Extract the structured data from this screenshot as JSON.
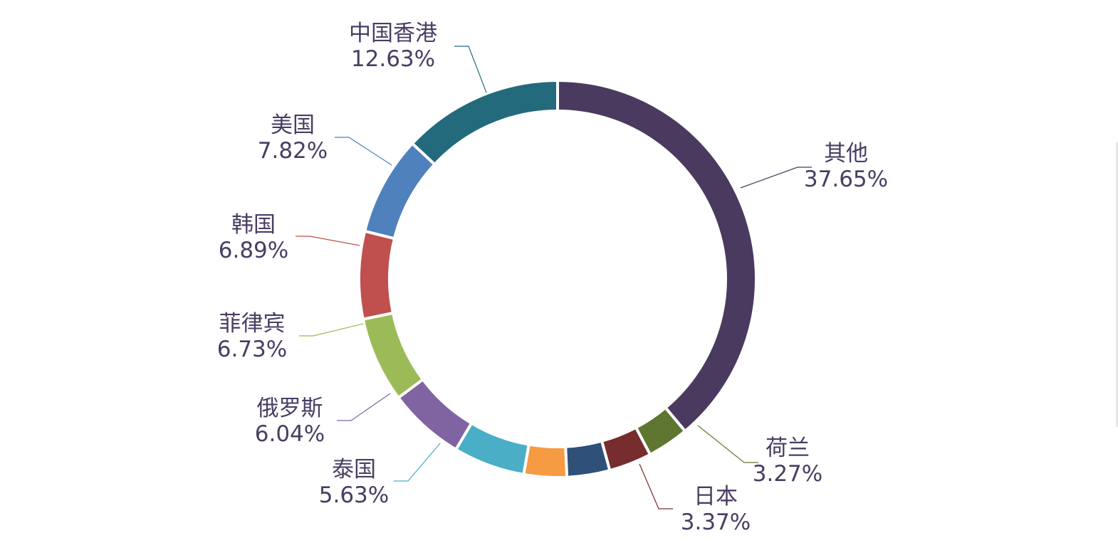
{
  "chart_data": {
    "type": "pie",
    "donut": true,
    "slices": [
      {
        "name": "其他",
        "value": 37.65,
        "label": "37.65%",
        "color": "#4b3a5f",
        "labeled": true
      },
      {
        "name": "荷兰",
        "value": 3.27,
        "label": "3.27%",
        "color": "#5f7632",
        "labeled": true
      },
      {
        "name": "日本",
        "value": 3.37,
        "label": "3.37%",
        "color": "#772c2d",
        "labeled": true
      },
      {
        "name": "",
        "value": 3.37,
        "label": "",
        "color": "#2e5079",
        "labeled": false
      },
      {
        "name": "",
        "value": 3.37,
        "label": "",
        "color": "#f69a43",
        "labeled": false
      },
      {
        "name": "泰国",
        "value": 5.63,
        "label": "5.63%",
        "color": "#49aec6",
        "labeled": true
      },
      {
        "name": "俄罗斯",
        "value": 6.04,
        "label": "6.04%",
        "color": "#8064a2",
        "labeled": true
      },
      {
        "name": "菲律宾",
        "value": 6.73,
        "label": "6.73%",
        "color": "#9bbb59",
        "labeled": true
      },
      {
        "name": "韩国",
        "value": 6.89,
        "label": "6.89%",
        "color": "#c0504d",
        "labeled": true
      },
      {
        "name": "美国",
        "value": 7.82,
        "label": "7.82%",
        "color": "#4f81bd",
        "labeled": true
      },
      {
        "name": "中国香港",
        "value": 12.63,
        "label": "12.63%",
        "color": "#236a7d",
        "labeled": true
      }
    ],
    "legend": "none",
    "label_color": "#4a3d63"
  }
}
